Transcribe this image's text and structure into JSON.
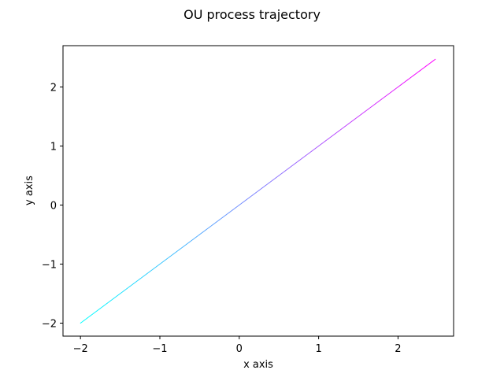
{
  "chart_data": {
    "type": "line",
    "title": "OU process trajectory",
    "xlabel": "x axis",
    "ylabel": "y axis",
    "xlim": [
      -2.22,
      2.7
    ],
    "ylim": [
      -2.22,
      2.7
    ],
    "xticks": [
      -2,
      -1,
      0,
      1,
      2
    ],
    "yticks": [
      -2,
      -1,
      0,
      1,
      2
    ],
    "xtick_labels": [
      "−2",
      "−1",
      "0",
      "1",
      "2"
    ],
    "ytick_labels": [
      "−2",
      "−1",
      "0",
      "1",
      "2"
    ],
    "grid": false,
    "legend": false,
    "colormap": "cool",
    "color_start": "#00ffff",
    "color_end": "#ff00ff",
    "series": [
      {
        "x": [
          -2.0,
          -1.5,
          -1.0,
          -0.5,
          0.0,
          0.5,
          1.0,
          1.5,
          2.0,
          2.47
        ],
        "y": [
          -2.0,
          -1.5,
          -1.0,
          -0.5,
          0.0,
          0.5,
          1.0,
          1.5,
          2.0,
          2.47
        ]
      }
    ]
  }
}
